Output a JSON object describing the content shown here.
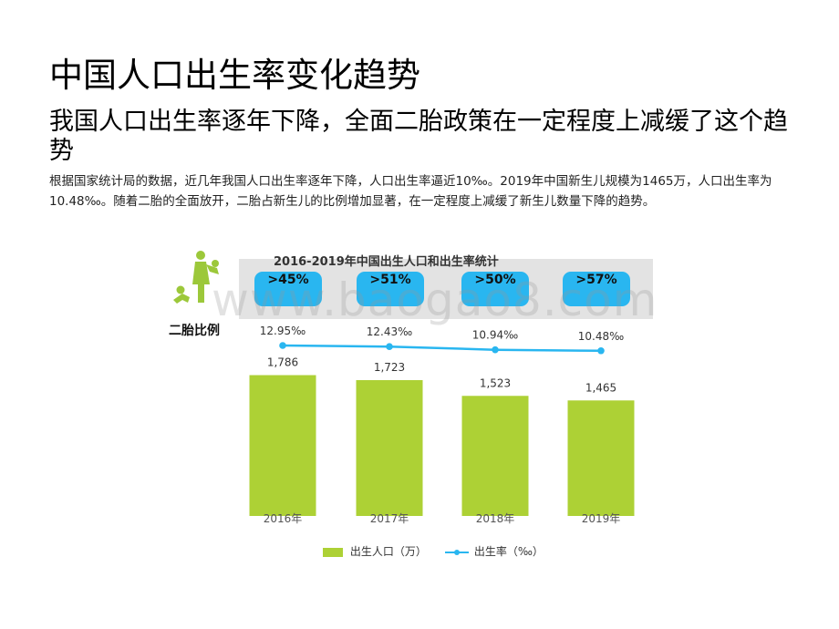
{
  "heading": {
    "title": "中国人口出生率变化趋势",
    "subtitle": "我国人口出生率逐年下降，全面二胎政策在一定程度上减缓了这个趋势",
    "body": "根据国家统计局的数据，近几年我国人口出生率逐年下降，人口出生率逼近10‰。2019年中国新生儿规模为1465万，人口出生率为10.48‰。随着二胎的全面放开，二胎占新生儿的比例增加显著，在一定程度上减缓了新生儿数量下降的趋势。"
  },
  "side_label": "二胎比例",
  "watermark": "www.baogao8.com",
  "badges": [
    ">45%",
    ">51%",
    ">50%",
    ">57%"
  ],
  "colors": {
    "bar": "#add135",
    "line": "#29b6f0",
    "badge": "#29b6f0",
    "icon": "#9cc83a"
  },
  "icons": {
    "figure": "mother-child-icon"
  },
  "chart_data": {
    "type": "bar",
    "title": "2016-2019年中国出生人口和出生率统计",
    "categories": [
      "2016年",
      "2017年",
      "2018年",
      "2019年"
    ],
    "series": [
      {
        "name": "出生人口（万）",
        "type": "bar",
        "values": [
          1786,
          1723,
          1523,
          1465
        ],
        "labels": [
          "1,786",
          "1,723",
          "1,523",
          "1,465"
        ]
      },
      {
        "name": "出生率（‰）",
        "type": "line",
        "values": [
          12.95,
          12.43,
          10.94,
          10.48
        ],
        "labels": [
          "12.95‰",
          "12.43‰",
          "10.94‰",
          "10.48‰"
        ]
      }
    ],
    "ylim": [
      0,
      2000
    ],
    "grid": false,
    "legend": "bottom"
  }
}
